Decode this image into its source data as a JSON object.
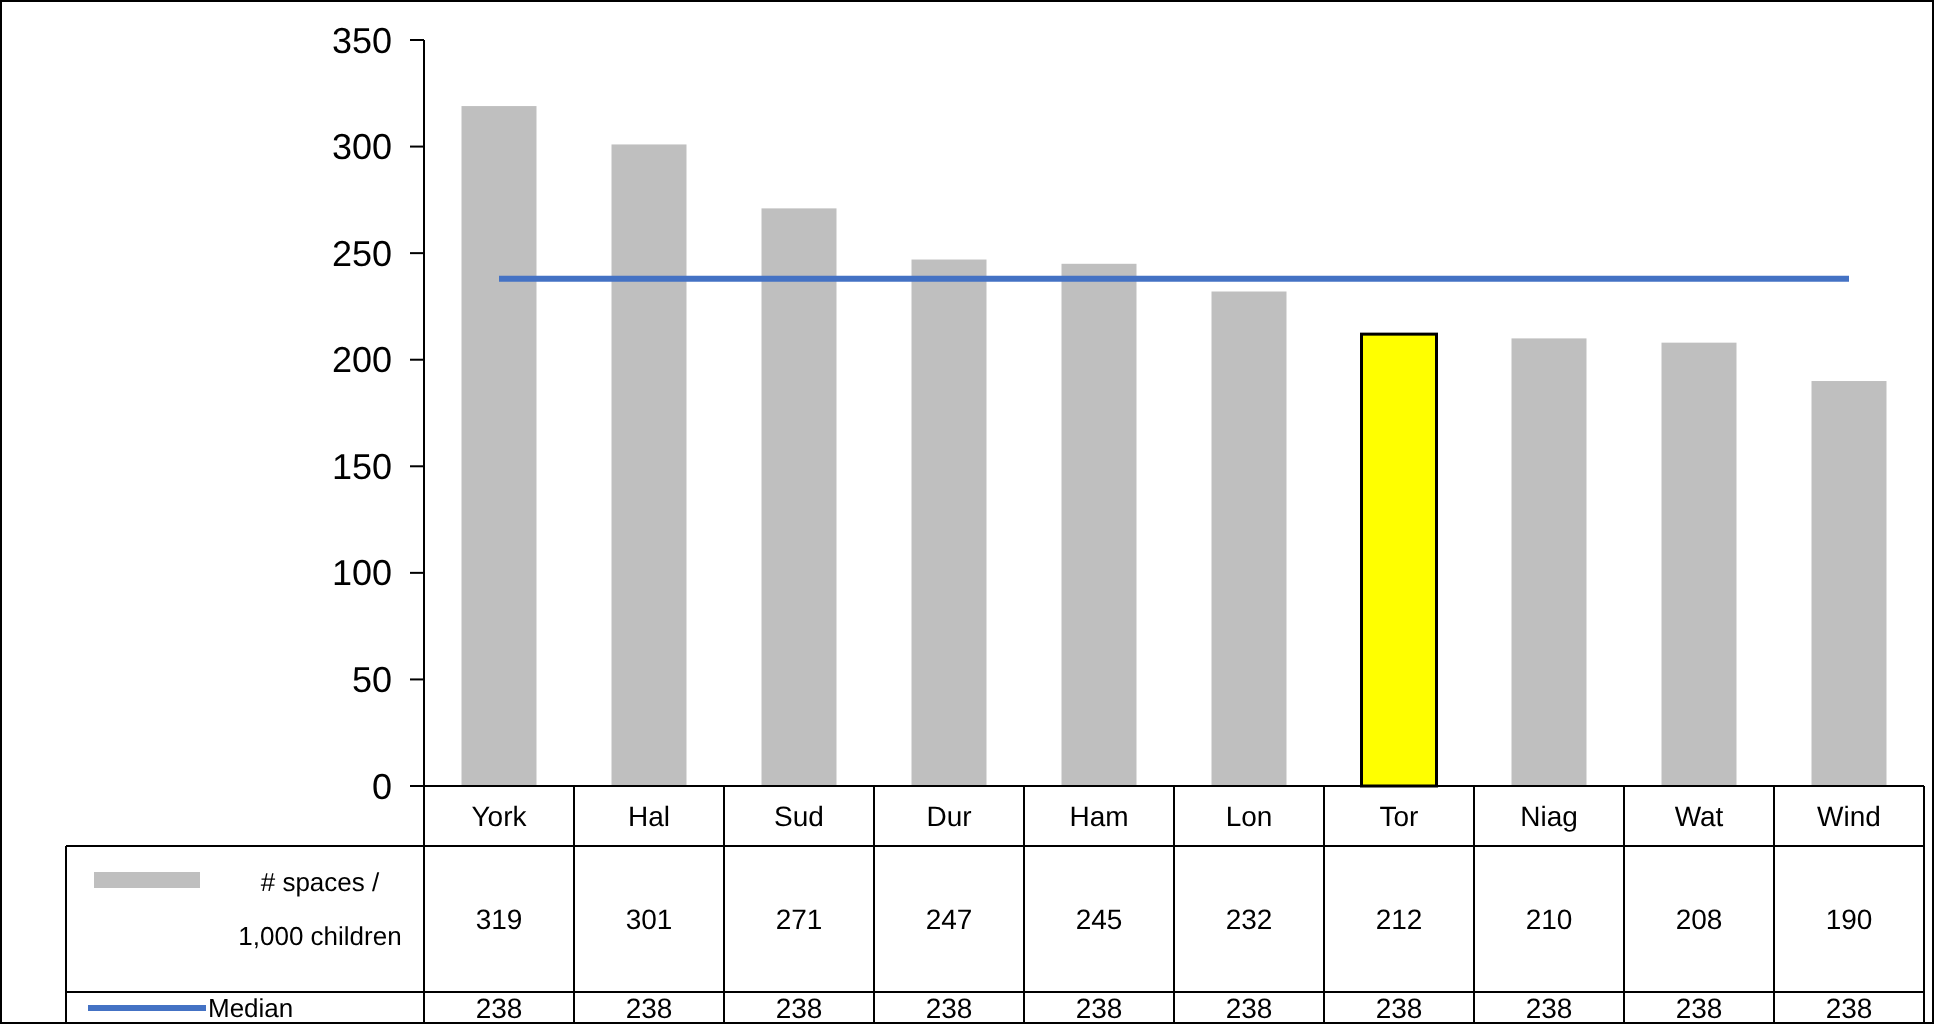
{
  "chart_data": {
    "type": "bar",
    "categories": [
      "York",
      "Hal",
      "Sud",
      "Dur",
      "Ham",
      "Lon",
      "Tor",
      "Niag",
      "Wat",
      "Wind"
    ],
    "series": [
      {
        "name": "# spaces / 1,000 children",
        "color": "#bfbfbf",
        "colors": [
          "#bfbfbf",
          "#bfbfbf",
          "#bfbfbf",
          "#bfbfbf",
          "#bfbfbf",
          "#bfbfbf",
          "#ffff00",
          "#bfbfbf",
          "#bfbfbf",
          "#bfbfbf"
        ],
        "values": [
          319,
          301,
          271,
          247,
          245,
          232,
          212,
          210,
          208,
          190
        ]
      },
      {
        "name": "Median",
        "type": "line",
        "color": "#4472c4",
        "values": [
          238,
          238,
          238,
          238,
          238,
          238,
          238,
          238,
          238,
          238
        ]
      }
    ],
    "ylim": [
      0,
      350
    ],
    "yticks": [
      0,
      50,
      100,
      150,
      200,
      250,
      300,
      350
    ],
    "data_labels": true,
    "legend": "bottom",
    "grid": false
  }
}
